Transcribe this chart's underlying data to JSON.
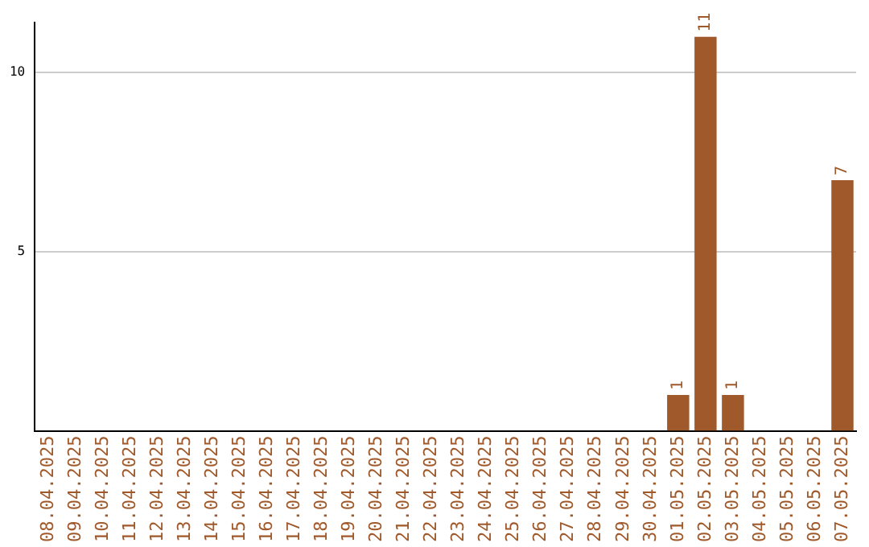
{
  "chart_data": {
    "type": "bar",
    "categories": [
      "08.04.2025",
      "09.04.2025",
      "10.04.2025",
      "11.04.2025",
      "12.04.2025",
      "13.04.2025",
      "14.04.2025",
      "15.04.2025",
      "16.04.2025",
      "17.04.2025",
      "18.04.2025",
      "19.04.2025",
      "20.04.2025",
      "21.04.2025",
      "22.04.2025",
      "23.04.2025",
      "24.04.2025",
      "25.04.2025",
      "26.04.2025",
      "27.04.2025",
      "28.04.2025",
      "29.04.2025",
      "30.04.2025",
      "01.05.2025",
      "02.05.2025",
      "03.05.2025",
      "04.05.2025",
      "05.05.2025",
      "06.05.2025",
      "07.05.2025"
    ],
    "values": [
      0,
      0,
      0,
      0,
      0,
      0,
      0,
      0,
      0,
      0,
      0,
      0,
      0,
      0,
      0,
      0,
      0,
      0,
      0,
      0,
      0,
      0,
      0,
      1,
      11,
      1,
      0,
      0,
      0,
      7
    ],
    "value_labels": [
      null,
      null,
      null,
      null,
      null,
      null,
      null,
      null,
      null,
      null,
      null,
      null,
      null,
      null,
      null,
      null,
      null,
      null,
      null,
      null,
      null,
      null,
      null,
      "1",
      "11",
      "1",
      null,
      null,
      null,
      "7"
    ],
    "color": "#a0592a",
    "ylim": [
      0,
      11.4
    ],
    "yticks": [
      5,
      10
    ],
    "grid": "y"
  }
}
